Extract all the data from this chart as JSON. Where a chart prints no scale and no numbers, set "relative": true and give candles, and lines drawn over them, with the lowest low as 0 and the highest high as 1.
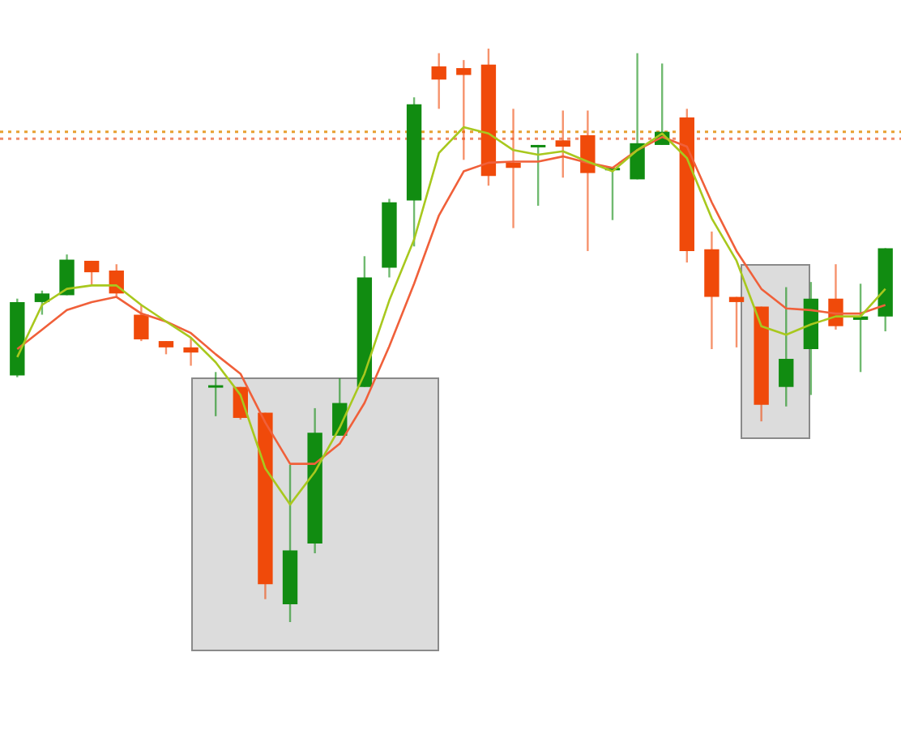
{
  "chart_data": {
    "type": "candlestick",
    "relative": true,
    "marker": "none",
    "categories": [
      null,
      null,
      null,
      null,
      null,
      null,
      null,
      null,
      null,
      null,
      null,
      null,
      null,
      null,
      null,
      null,
      null,
      null,
      null,
      null,
      null,
      null,
      null,
      null,
      null,
      null,
      null,
      null,
      null,
      null,
      null,
      null,
      null,
      null,
      null,
      null
    ],
    "ohlc": [
      [
        0.43,
        0.564,
        0.427,
        0.558
      ],
      [
        0.558,
        0.578,
        0.536,
        0.573
      ],
      [
        0.57,
        0.641,
        0.57,
        0.632
      ],
      [
        0.63,
        0.63,
        0.587,
        0.61
      ],
      [
        0.613,
        0.624,
        0.567,
        0.573
      ],
      [
        0.536,
        0.553,
        0.49,
        0.493
      ],
      [
        0.49,
        0.49,
        0.467,
        0.479
      ],
      [
        0.479,
        0.496,
        0.447,
        0.47
      ],
      [
        0.41,
        0.436,
        0.359,
        0.413
      ],
      [
        0.41,
        0.41,
        0.353,
        0.356
      ],
      [
        0.365,
        0.365,
        0.04,
        0.066
      ],
      [
        0.031,
        0.274,
        0,
        0.125
      ],
      [
        0.137,
        0.373,
        0.12,
        0.33
      ],
      [
        0.325,
        0.425,
        0.325,
        0.382
      ],
      [
        0.41,
        0.638,
        0.41,
        0.601
      ],
      [
        0.618,
        0.738,
        0.601,
        0.732
      ],
      [
        0.735,
        0.915,
        0.655,
        0.903
      ],
      [
        0.969,
        0.992,
        0.895,
        0.946
      ],
      [
        0.966,
        0.98,
        0.806,
        0.954
      ],
      [
        0.972,
        1,
        0.761,
        0.778
      ],
      [
        0.801,
        0.895,
        0.687,
        0.792
      ],
      [
        0.829,
        0.832,
        0.726,
        0.832
      ],
      [
        0.84,
        0.892,
        0.775,
        0.829
      ],
      [
        0.849,
        0.892,
        0.647,
        0.783
      ],
      [
        0.789,
        0.792,
        0.701,
        0.792
      ],
      [
        0.772,
        0.992,
        0.772,
        0.835
      ],
      [
        0.832,
        0.974,
        0.832,
        0.855
      ],
      [
        0.88,
        0.895,
        0.627,
        0.647
      ],
      [
        0.65,
        0.681,
        0.476,
        0.567
      ],
      [
        0.567,
        0.567,
        0.479,
        0.558
      ],
      [
        0.55,
        0.55,
        0.35,
        0.379
      ],
      [
        0.41,
        0.584,
        0.376,
        0.459
      ],
      [
        0.476,
        0.593,
        0.396,
        0.564
      ],
      [
        0.564,
        0.624,
        0.51,
        0.516
      ],
      [
        0.527,
        0.59,
        0.436,
        0.533
      ],
      [
        0.533,
        0.652,
        0.507,
        0.652
      ]
    ],
    "colors": [
      "#118c11",
      "#118c11",
      "#118c11",
      "#f04a0a",
      "#f04a0a",
      "#f04a0a",
      "#f04a0a",
      "#f04a0a",
      "#118c11",
      "#f04a0a",
      "#f04a0a",
      "#118c11",
      "#118c11",
      "#118c11",
      "#118c11",
      "#118c11",
      "#118c11",
      "#f04a0a",
      "#f04a0a",
      "#f04a0a",
      "#f04a0a",
      "#118c11",
      "#f04a0a",
      "#f04a0a",
      "#118c11",
      "#118c11",
      "#118c11",
      "#f04a0a",
      "#f04a0a",
      "#f04a0a",
      "#f04a0a",
      "#118c11",
      "#118c11",
      "#f04a0a",
      "#118c11",
      "#118c11"
    ],
    "series": [
      {
        "type": "line",
        "color": "#a8c81e",
        "values": [
          0.462,
          0.553,
          0.581,
          0.587,
          0.587,
          0.553,
          0.524,
          0.496,
          0.453,
          0.396,
          0.268,
          0.205,
          0.262,
          0.339,
          0.433,
          0.561,
          0.667,
          0.818,
          0.863,
          0.852,
          0.823,
          0.815,
          0.821,
          0.803,
          0.786,
          0.823,
          0.852,
          0.809,
          0.704,
          0.63,
          0.516,
          0.501,
          0.519,
          0.533,
          0.533,
          0.581
        ]
      },
      {
        "type": "line",
        "color": "#f0603a",
        "values": [
          0.476,
          0.51,
          0.544,
          0.558,
          0.567,
          0.538,
          0.524,
          0.504,
          0.467,
          0.433,
          0.348,
          0.276,
          0.276,
          0.311,
          0.382,
          0.481,
          0.59,
          0.709,
          0.786,
          0.801,
          0.803,
          0.803,
          0.812,
          0.801,
          0.792,
          0.823,
          0.846,
          0.829,
          0.732,
          0.647,
          0.581,
          0.547,
          0.544,
          0.538,
          0.538,
          0.553
        ]
      }
    ],
    "ref_lines": [
      {
        "axis": "y",
        "value": 0.855,
        "color": "#e8a030",
        "line_style": "dotted"
      },
      {
        "axis": "y",
        "value": 0.843,
        "color": "#f08a6a",
        "line_style": "dotted"
      }
    ]
  }
}
